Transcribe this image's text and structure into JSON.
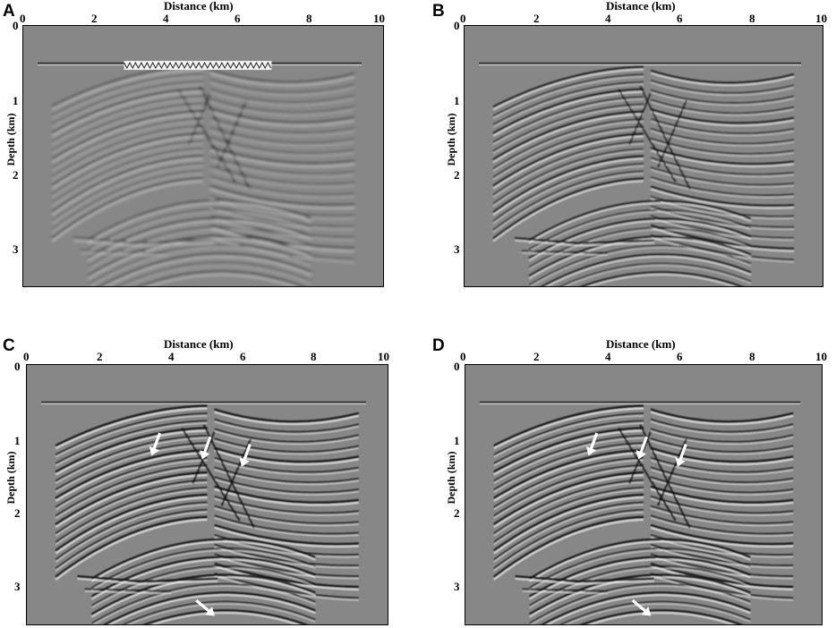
{
  "figure": {
    "panels": [
      {
        "letter": "A",
        "mode": "blurred",
        "has_source_array": true,
        "has_arrows": false
      },
      {
        "letter": "B",
        "mode": "medium",
        "has_source_array": false,
        "has_arrows": false
      },
      {
        "letter": "C",
        "mode": "sharp",
        "has_source_array": false,
        "has_arrows": true
      },
      {
        "letter": "D",
        "mode": "sharp",
        "has_source_array": false,
        "has_arrows": true
      }
    ],
    "x_axis": {
      "title": "Distance (km)",
      "ticks": [
        "0",
        "2",
        "4",
        "6",
        "8",
        "10"
      ],
      "range_km": [
        0,
        10
      ]
    },
    "y_axis": {
      "title": "Depth (km)",
      "ticks": [
        "0",
        "1",
        "2",
        "3"
      ],
      "range_km": [
        0,
        3.5
      ]
    },
    "colors": {
      "background": "#878787",
      "reflector_dark": "#111111",
      "reflector_light": "#f4f4f4",
      "arrow": "#ffffff"
    },
    "arrows_km": [
      {
        "x": 3.55,
        "y": 1.1
      },
      {
        "x": 4.95,
        "y": 1.15
      },
      {
        "x": 6.05,
        "y": 1.25
      },
      {
        "x": 5.0,
        "y": 3.3
      }
    ]
  }
}
